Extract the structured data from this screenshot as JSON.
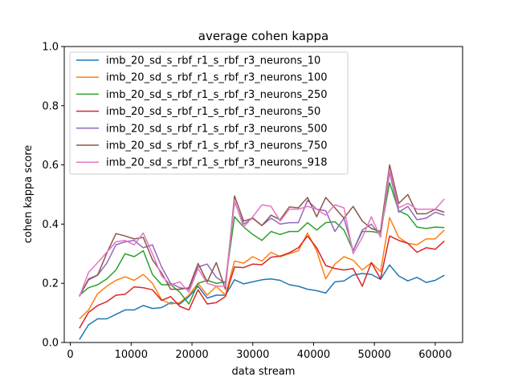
{
  "chart_data": {
    "type": "line",
    "title": "average cohen kappa",
    "xlabel": "data stream",
    "ylabel": "cohen kappa score",
    "xlim": [
      -1000,
      64500
    ],
    "ylim": [
      0.0,
      1.0
    ],
    "xticks": [
      0,
      10000,
      20000,
      30000,
      40000,
      50000,
      60000
    ],
    "yticks": [
      0.0,
      0.2,
      0.4,
      0.6,
      0.8,
      1.0
    ],
    "ytick_labels": [
      "0.0",
      "0.2",
      "0.4",
      "0.6",
      "0.8",
      "1.0"
    ],
    "grid": false,
    "legend_position": "upper-left",
    "x": [
      1500,
      3000,
      4500,
      6000,
      7500,
      9000,
      10500,
      12000,
      13500,
      15000,
      16500,
      18000,
      19500,
      21000,
      22500,
      24000,
      25500,
      27000,
      28500,
      30000,
      31500,
      33000,
      34500,
      36000,
      37500,
      39000,
      40500,
      42000,
      43500,
      45000,
      46500,
      48000,
      49500,
      51000,
      52500,
      54000,
      55500,
      57000,
      58500,
      60000,
      61500
    ],
    "series": [
      {
        "name": "imb_20_sd_s_rbf_r1_s_rbf_r3_neurons_10",
        "color": "#1f77b4",
        "values": [
          0.01,
          0.06,
          0.08,
          0.08,
          0.095,
          0.11,
          0.11,
          0.125,
          0.115,
          0.118,
          0.135,
          0.13,
          0.155,
          0.19,
          0.15,
          0.16,
          0.16,
          0.212,
          0.198,
          0.205,
          0.212,
          0.215,
          0.21,
          0.195,
          0.19,
          0.18,
          0.175,
          0.167,
          0.205,
          0.208,
          0.228,
          0.233,
          0.23,
          0.213,
          0.262,
          0.225,
          0.208,
          0.22,
          0.203,
          0.21,
          0.227
        ]
      },
      {
        "name": "imb_20_sd_s_rbf_r1_s_rbf_r3_neurons_100",
        "color": "#ff7f0e",
        "values": [
          0.08,
          0.11,
          0.165,
          0.19,
          0.21,
          0.222,
          0.21,
          0.23,
          0.2,
          0.145,
          0.13,
          0.135,
          0.16,
          0.2,
          0.16,
          0.19,
          0.16,
          0.275,
          0.268,
          0.29,
          0.275,
          0.305,
          0.29,
          0.3,
          0.31,
          0.37,
          0.31,
          0.215,
          0.265,
          0.29,
          0.278,
          0.245,
          0.27,
          0.24,
          0.422,
          0.355,
          0.335,
          0.33,
          0.35,
          0.35,
          0.38
        ]
      },
      {
        "name": "imb_20_sd_s_rbf_r1_s_rbf_r3_neurons_250",
        "color": "#2ca02c",
        "values": [
          0.16,
          0.185,
          0.195,
          0.215,
          0.245,
          0.3,
          0.29,
          0.31,
          0.23,
          0.195,
          0.195,
          0.17,
          0.13,
          0.2,
          0.21,
          0.2,
          0.205,
          0.425,
          0.39,
          0.365,
          0.345,
          0.375,
          0.365,
          0.375,
          0.375,
          0.405,
          0.38,
          0.405,
          0.408,
          0.38,
          0.31,
          0.375,
          0.375,
          0.37,
          0.54,
          0.445,
          0.43,
          0.39,
          0.385,
          0.39,
          0.388
        ]
      },
      {
        "name": "imb_20_sd_s_rbf_r1_s_rbf_r3_neurons_50",
        "color": "#d62728",
        "values": [
          0.048,
          0.102,
          0.125,
          0.138,
          0.16,
          0.163,
          0.188,
          0.185,
          0.178,
          0.142,
          0.155,
          0.122,
          0.11,
          0.178,
          0.13,
          0.135,
          0.155,
          0.255,
          0.253,
          0.265,
          0.263,
          0.288,
          0.292,
          0.303,
          0.32,
          0.36,
          0.32,
          0.26,
          0.25,
          0.245,
          0.25,
          0.19,
          0.27,
          0.215,
          0.36,
          0.345,
          0.335,
          0.305,
          0.32,
          0.315,
          0.343
        ]
      },
      {
        "name": "imb_20_sd_s_rbf_r1_s_rbf_r3_neurons_500",
        "color": "#9467bd",
        "values": [
          0.155,
          0.215,
          0.228,
          0.268,
          0.33,
          0.34,
          0.345,
          0.32,
          0.33,
          0.255,
          0.2,
          0.185,
          0.18,
          0.255,
          0.265,
          0.22,
          0.2,
          0.475,
          0.4,
          0.42,
          0.395,
          0.42,
          0.4,
          0.405,
          0.405,
          0.48,
          0.45,
          0.445,
          0.375,
          0.42,
          0.31,
          0.38,
          0.4,
          0.36,
          0.575,
          0.44,
          0.46,
          0.415,
          0.42,
          0.44,
          0.43
        ]
      },
      {
        "name": "imb_20_sd_s_rbf_r1_s_rbf_r3_neurons_750",
        "color": "#8c564b",
        "values": [
          0.158,
          0.212,
          0.228,
          0.302,
          0.368,
          0.36,
          0.35,
          0.355,
          0.28,
          0.235,
          0.18,
          0.18,
          0.185,
          0.267,
          0.205,
          0.27,
          0.18,
          0.495,
          0.41,
          0.42,
          0.395,
          0.43,
          0.415,
          0.458,
          0.455,
          0.49,
          0.425,
          0.49,
          0.455,
          0.42,
          0.46,
          0.41,
          0.385,
          0.375,
          0.6,
          0.47,
          0.5,
          0.435,
          0.435,
          0.45,
          0.44
        ]
      },
      {
        "name": "imb_20_sd_s_rbf_r1_s_rbf_r3_neurons_918",
        "color": "#e377c2",
        "values": [
          0.155,
          0.237,
          0.27,
          0.305,
          0.34,
          0.345,
          0.33,
          0.37,
          0.3,
          0.225,
          0.195,
          0.205,
          0.17,
          0.25,
          0.2,
          0.19,
          0.19,
          0.48,
          0.39,
          0.425,
          0.465,
          0.46,
          0.41,
          0.45,
          0.45,
          0.46,
          0.45,
          0.43,
          0.465,
          0.455,
          0.3,
          0.355,
          0.425,
          0.355,
          0.585,
          0.455,
          0.47,
          0.45,
          0.45,
          0.45,
          0.485
        ]
      }
    ]
  }
}
